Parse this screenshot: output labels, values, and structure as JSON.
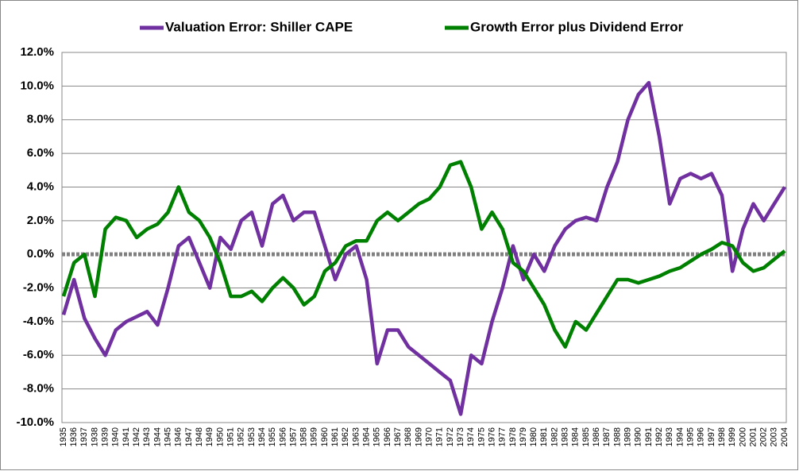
{
  "chart_data": {
    "type": "line",
    "categories": [
      "1935",
      "1936",
      "1937",
      "1938",
      "1939",
      "1940",
      "1941",
      "1942",
      "1943",
      "1944",
      "1945",
      "1946",
      "1947",
      "1948",
      "1949",
      "1950",
      "1951",
      "1952",
      "1953",
      "1954",
      "1955",
      "1956",
      "1957",
      "1958",
      "1959",
      "1960",
      "1961",
      "1962",
      "1963",
      "1964",
      "1965",
      "1966",
      "1967",
      "1968",
      "1969",
      "1970",
      "1971",
      "1972",
      "1973",
      "1974",
      "1975",
      "1976",
      "1977",
      "1978",
      "1979",
      "1980",
      "1981",
      "1982",
      "1983",
      "1984",
      "1985",
      "1986",
      "1987",
      "1988",
      "1989",
      "1990",
      "1991",
      "1992",
      "1993",
      "1994",
      "1995",
      "1996",
      "1997",
      "1998",
      "1999",
      "2000",
      "2001",
      "2002",
      "2003",
      "2004"
    ],
    "series": [
      {
        "name": "Valuation Error: Shiller CAPE",
        "color": "#7030a0",
        "values": [
          -3.6,
          -1.5,
          -3.8,
          -5.0,
          -6.0,
          -4.5,
          -4.0,
          -3.7,
          -3.4,
          -4.2,
          -2.0,
          0.5,
          1.0,
          -0.5,
          -2.0,
          1.0,
          0.3,
          2.0,
          2.5,
          0.5,
          3.0,
          3.5,
          2.0,
          2.5,
          2.5,
          0.5,
          -1.5,
          0.0,
          0.5,
          -1.5,
          -6.5,
          -4.5,
          -4.5,
          -5.5,
          -6.0,
          -6.5,
          -7.0,
          -7.5,
          -9.5,
          -6.0,
          -6.5,
          -4.0,
          -2.0,
          0.5,
          -1.5,
          0.0,
          -1.0,
          0.5,
          1.5,
          2.0,
          2.2,
          2.0,
          4.0,
          5.5,
          8.0,
          9.5,
          10.2,
          7.0,
          3.0,
          4.5,
          4.8,
          4.5,
          4.8,
          3.5,
          -1.0,
          1.5,
          3.0,
          2.0,
          3.0,
          4.0
        ]
      },
      {
        "name": "Growth Error plus Dividend Error",
        "color": "#008000",
        "values": [
          -2.5,
          -0.5,
          0.0,
          -2.5,
          1.5,
          2.2,
          2.0,
          1.0,
          1.5,
          1.8,
          2.5,
          4.0,
          2.5,
          2.0,
          1.0,
          -0.5,
          -2.5,
          -2.5,
          -2.2,
          -2.8,
          -2.0,
          -1.4,
          -2.0,
          -3.0,
          -2.5,
          -1.0,
          -0.5,
          0.5,
          0.8,
          0.8,
          2.0,
          2.5,
          2.0,
          2.5,
          3.0,
          3.3,
          4.0,
          5.3,
          5.5,
          4.0,
          1.5,
          2.5,
          1.5,
          -0.5,
          -1.0,
          -2.0,
          -3.0,
          -4.5,
          -5.5,
          -4.0,
          -4.5,
          -3.5,
          -2.5,
          -1.5,
          -1.5,
          -1.7,
          -1.5,
          -1.3,
          -1.0,
          -0.8,
          -0.4,
          0.0,
          0.3,
          0.7,
          0.5,
          -0.5,
          -1.0,
          -0.8,
          -0.3,
          0.2
        ]
      }
    ],
    "ylim": [
      -10,
      12
    ],
    "yticks": [
      {
        "value": -10,
        "label": "-10.0%"
      },
      {
        "value": -8,
        "label": "-8.0%"
      },
      {
        "value": -6,
        "label": "-6.0%"
      },
      {
        "value": -4,
        "label": "-4.0%"
      },
      {
        "value": -2,
        "label": "-2.0%"
      },
      {
        "value": 0,
        "label": "0.0%"
      },
      {
        "value": 2,
        "label": "2.0%"
      },
      {
        "value": 4,
        "label": "4.0%"
      },
      {
        "value": 6,
        "label": "6.0%"
      },
      {
        "value": 8,
        "label": "8.0%"
      },
      {
        "value": 10,
        "label": "10.0%"
      },
      {
        "value": 12,
        "label": "12.0%"
      }
    ],
    "grid": true,
    "legend": "top"
  }
}
